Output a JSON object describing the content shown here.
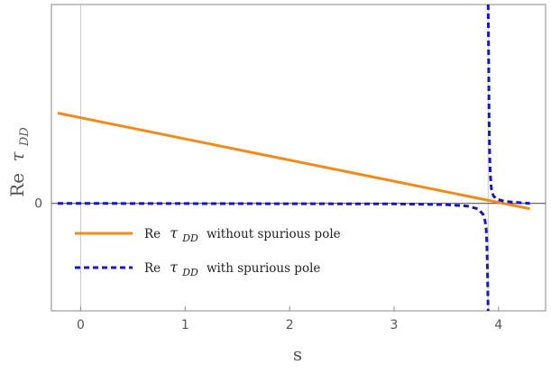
{
  "chart_data": {
    "type": "line",
    "xlabel": "s",
    "ylabel_prefix": "Re",
    "ylabel_symbol": "τ",
    "ylabel_subscript": "DD",
    "xlim": [
      -0.28,
      4.45
    ],
    "ylim": [
      -1.0,
      1.85
    ],
    "x_ticks": [
      0,
      1,
      2,
      3,
      4
    ],
    "x_tick_labels": [
      "0",
      "1",
      "2",
      "3",
      "4"
    ],
    "y_ticks": [
      0
    ],
    "y_tick_labels": [
      "0"
    ],
    "pole_x": 3.9,
    "series": [
      {
        "name": "without spurious pole",
        "legend_prefix": "Re",
        "legend_symbol": "τ",
        "legend_subscript": "DD",
        "legend_suffix": "without spurious pole",
        "color": "#F28A1A",
        "dash": "solid",
        "x": [
          -0.22,
          4.3
        ],
        "y": [
          0.84,
          -0.05
        ]
      },
      {
        "name": "with spurious pole",
        "legend_prefix": "Re",
        "legend_symbol": "τ",
        "legend_subscript": "DD",
        "legend_suffix": "with spurious pole",
        "color": "#1515CC",
        "dash": "dashed",
        "left_x": [
          -0.22,
          3.0,
          3.5,
          3.7,
          3.8,
          3.85,
          3.87,
          3.88,
          3.885,
          3.89,
          3.895,
          3.9
        ],
        "left_y": [
          0.0,
          -0.005,
          -0.012,
          -0.025,
          -0.05,
          -0.1,
          -0.16,
          -0.23,
          -0.3,
          -0.45,
          -0.7,
          -1.0
        ],
        "right_x": [
          3.9,
          3.905,
          3.91,
          3.915,
          3.92,
          3.93,
          3.95,
          3.98,
          4.05,
          4.15,
          4.3
        ],
        "right_y": [
          1.85,
          1.3,
          0.75,
          0.45,
          0.28,
          0.14,
          0.07,
          0.04,
          0.02,
          0.01,
          0.0
        ]
      }
    ]
  }
}
